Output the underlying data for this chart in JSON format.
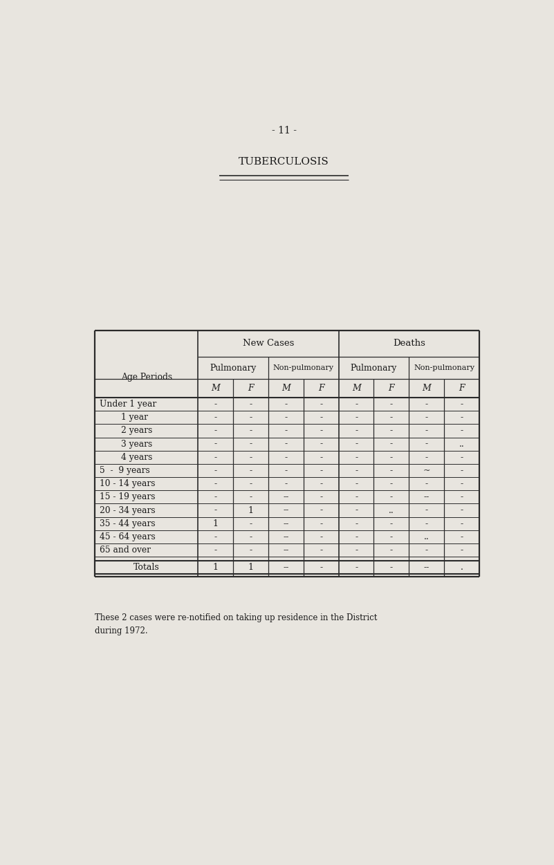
{
  "page_num": "- 11 -",
  "title": "TUBERCULOSIS",
  "background_color": "#e8e5df",
  "text_color": "#1a1a1a",
  "age_periods": [
    "Under 1 year",
    "        1 year",
    "        2 years",
    "        3 years",
    "        4 years",
    "5  -  9 years",
    "10 - 14 years",
    "15 - 19 years",
    "20 - 34 years",
    "35 - 44 years",
    "45 - 64 years",
    "65 and over"
  ],
  "data": [
    [
      "-",
      "-",
      "-",
      "-",
      "-",
      "-",
      "-",
      "-"
    ],
    [
      "-",
      "-",
      "-",
      "-",
      "-",
      "-",
      "-",
      "-"
    ],
    [
      "-",
      "-",
      "-",
      "-",
      "-",
      "-",
      "-",
      "-"
    ],
    [
      "-",
      "-",
      "-",
      "-",
      "-",
      "-",
      "-",
      ".."
    ],
    [
      "-",
      "-",
      "-",
      "-",
      "-",
      "-",
      "-",
      "-"
    ],
    [
      "-",
      "-",
      "-",
      "-",
      "-",
      "-",
      "~",
      "-"
    ],
    [
      "-",
      "-",
      "-",
      "-",
      "-",
      "-",
      "-",
      "-"
    ],
    [
      "-",
      "-",
      "--",
      "-",
      "-",
      "-",
      "--",
      "-"
    ],
    [
      "-",
      "1",
      "--",
      "-",
      "-",
      "..",
      "-",
      "-"
    ],
    [
      "1",
      "-",
      "--",
      "-",
      "-",
      "-",
      "-",
      "-"
    ],
    [
      "-",
      "-",
      "--",
      "-",
      "-",
      "-",
      "..",
      "-"
    ],
    [
      "-",
      "-",
      "--",
      "-",
      "-",
      "-",
      "-",
      "-"
    ]
  ],
  "totals_label": "Totals",
  "totals_data": [
    "1",
    "1",
    "--",
    "-",
    "-",
    "-",
    "--",
    "."
  ],
  "footnote": "These 2 cases were re-notified on taking up residence in the District\nduring 1972."
}
